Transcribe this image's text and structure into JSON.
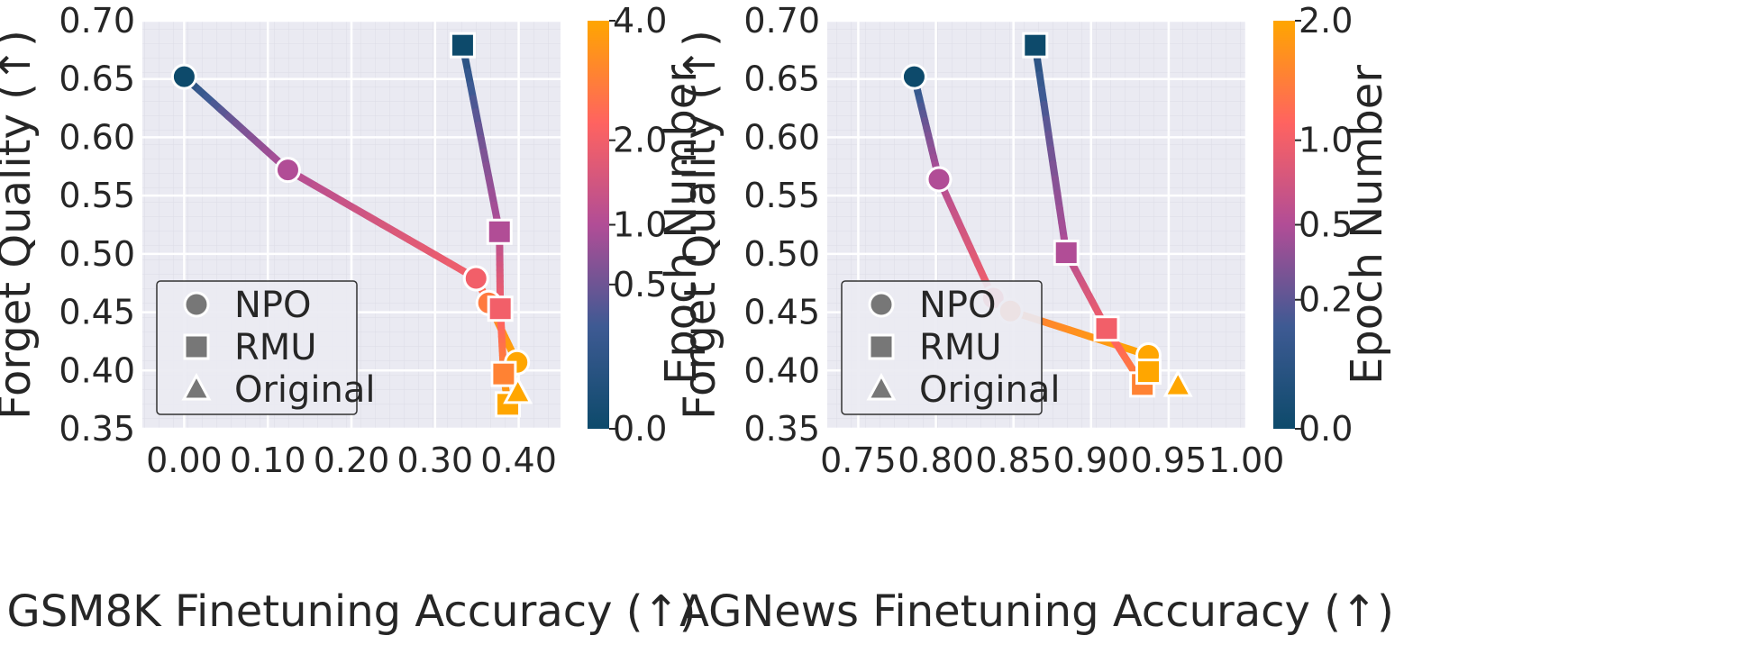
{
  "chart_data": [
    {
      "type": "line",
      "xlabel": "GSM8K Finetuning Accuracy (↑)",
      "ylabel": "Forget Quality (↑)",
      "xlim": [
        -0.05,
        0.45
      ],
      "ylim": [
        0.35,
        0.7
      ],
      "xticks": [
        "0.00",
        "0.10",
        "0.20",
        "0.30",
        "0.40"
      ],
      "yticks": [
        "0.35",
        "0.40",
        "0.45",
        "0.50",
        "0.55",
        "0.60",
        "0.65",
        "0.70"
      ],
      "grid": true,
      "legend": {
        "placement": "lower-left",
        "entries": [
          "NPO",
          "RMU",
          "Original"
        ]
      },
      "colorbar": {
        "label": "Epoch Number",
        "ticks": [
          "0.0",
          "0.5",
          "1.0",
          "2.0",
          "4.0"
        ],
        "tick_epochs": [
          0,
          0.5,
          1,
          2,
          4
        ],
        "max_epoch": 4
      },
      "series": [
        {
          "name": "NPO",
          "marker": "circle",
          "points": [
            {
              "x": 0.0,
              "y": 0.652,
              "epoch": 0
            },
            {
              "x": 0.124,
              "y": 0.572,
              "epoch": 1
            },
            {
              "x": 0.349,
              "y": 0.479,
              "epoch": 2
            },
            {
              "x": 0.364,
              "y": 0.458,
              "epoch": 2.8
            },
            {
              "x": 0.398,
              "y": 0.407,
              "epoch": 4
            }
          ]
        },
        {
          "name": "RMU",
          "marker": "square",
          "points": [
            {
              "x": 0.333,
              "y": 0.679,
              "epoch": 0
            },
            {
              "x": 0.377,
              "y": 0.519,
              "epoch": 1
            },
            {
              "x": 0.378,
              "y": 0.453,
              "epoch": 2
            },
            {
              "x": 0.382,
              "y": 0.397,
              "epoch": 3
            },
            {
              "x": 0.387,
              "y": 0.371,
              "epoch": 4
            }
          ]
        },
        {
          "name": "Original",
          "marker": "triangle",
          "points": [
            {
              "x": 0.399,
              "y": 0.381,
              "epoch": 4
            }
          ]
        }
      ]
    },
    {
      "type": "line",
      "xlabel": "AGNews Finetuning Accuracy (↑)",
      "ylabel": "Forget Quality (↑)",
      "xlim": [
        0.73,
        1.0
      ],
      "ylim": [
        0.35,
        0.7
      ],
      "xticks": [
        "0.75",
        "0.80",
        "0.85",
        "0.90",
        "0.95",
        "1.00"
      ],
      "yticks": [
        "0.35",
        "0.40",
        "0.45",
        "0.50",
        "0.55",
        "0.60",
        "0.65",
        "0.70"
      ],
      "grid": true,
      "legend": {
        "placement": "lower-left",
        "entries": [
          "NPO",
          "RMU",
          "Original"
        ]
      },
      "colorbar": {
        "label": "Epoch Number",
        "ticks": [
          "0.0",
          "0.2",
          "0.5",
          "1.0",
          "2.0"
        ],
        "tick_epochs": [
          0,
          0.2,
          0.5,
          1,
          2
        ],
        "max_epoch": 2
      },
      "series": [
        {
          "name": "NPO",
          "marker": "circle",
          "points": [
            {
              "x": 0.786,
              "y": 0.652,
              "epoch": 0
            },
            {
              "x": 0.802,
              "y": 0.564,
              "epoch": 0.5
            },
            {
              "x": 0.837,
              "y": 0.462,
              "epoch": 1
            },
            {
              "x": 0.848,
              "y": 0.451,
              "epoch": 1.4
            },
            {
              "x": 0.937,
              "y": 0.413,
              "epoch": 2
            }
          ]
        },
        {
          "name": "RMU",
          "marker": "square",
          "points": [
            {
              "x": 0.864,
              "y": 0.679,
              "epoch": 0
            },
            {
              "x": 0.884,
              "y": 0.501,
              "epoch": 0.5
            },
            {
              "x": 0.91,
              "y": 0.436,
              "epoch": 1
            },
            {
              "x": 0.933,
              "y": 0.388,
              "epoch": 1.5
            },
            {
              "x": 0.937,
              "y": 0.399,
              "epoch": 2
            }
          ]
        },
        {
          "name": "Original",
          "marker": "triangle",
          "points": [
            {
              "x": 0.956,
              "y": 0.387,
              "epoch": 2
            }
          ]
        }
      ]
    }
  ]
}
